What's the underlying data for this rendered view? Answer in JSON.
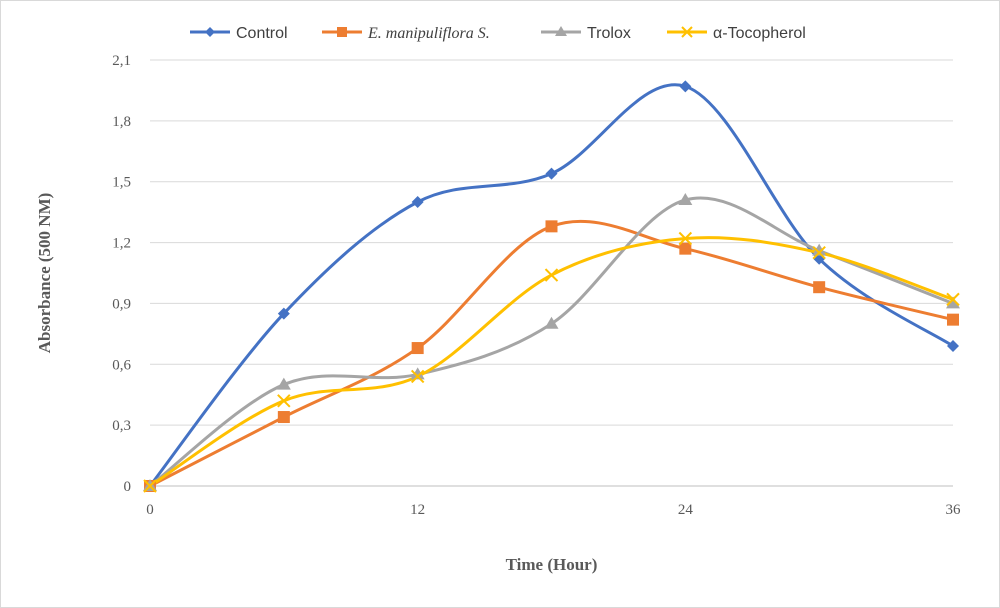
{
  "chart_data": {
    "type": "line",
    "smooth": true,
    "x": [
      0,
      6,
      12,
      18,
      24,
      30,
      36
    ],
    "x_ticks": [
      "0",
      "12",
      "24",
      "36"
    ],
    "y_ticks": [
      "0",
      "0,3",
      "0,6",
      "0,9",
      "1,2",
      "1,5",
      "1,8",
      "2,1"
    ],
    "xlim": [
      0,
      36
    ],
    "ylim": [
      0,
      2.1
    ],
    "xlabel": "Time (Hour)",
    "ylabel": "Absorbance (500 NM)",
    "grid": "horizontal",
    "legend_position": "top",
    "series": [
      {
        "name": "Control",
        "color": "#4472C4",
        "marker": "diamond",
        "italic": false,
        "values": [
          0,
          0.85,
          1.4,
          1.54,
          1.97,
          1.12,
          0.69
        ]
      },
      {
        "name": "E. manipuliflora S.",
        "color": "#ED7D31",
        "marker": "square",
        "italic": true,
        "values": [
          0,
          0.34,
          0.68,
          1.28,
          1.17,
          0.98,
          0.82
        ]
      },
      {
        "name": "Trolox",
        "color": "#A5A5A5",
        "marker": "triangle",
        "italic": false,
        "values": [
          0,
          0.5,
          0.55,
          0.8,
          1.41,
          1.16,
          0.9
        ]
      },
      {
        "name": "α-Tocopherol",
        "color": "#FFC000",
        "marker": "x",
        "italic": false,
        "values": [
          0,
          0.42,
          0.54,
          1.04,
          1.22,
          1.15,
          0.92
        ]
      }
    ]
  }
}
